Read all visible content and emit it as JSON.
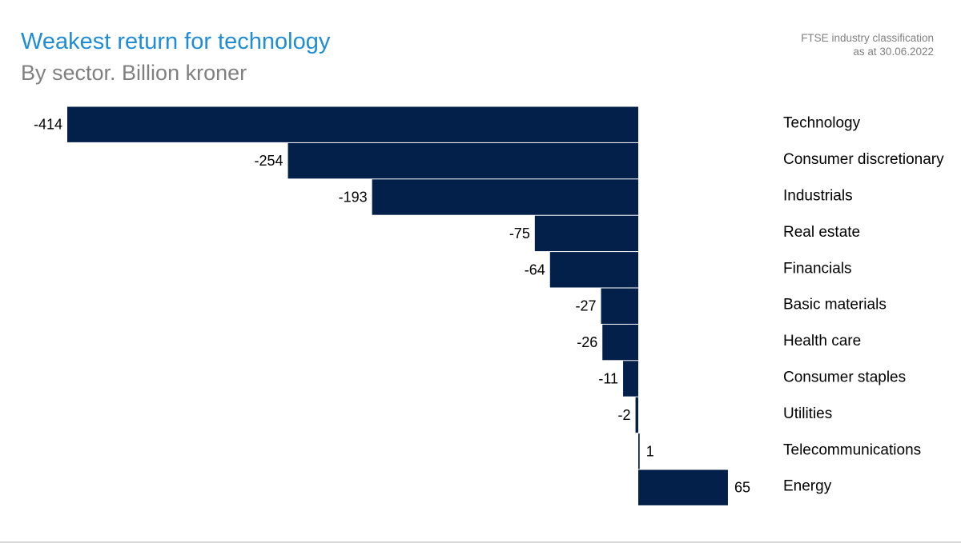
{
  "header": {
    "title": "Weakest return for technology",
    "subtitle": "By sector. Billion kroner",
    "note_line1": "FTSE industry classification",
    "note_line2": "as at 30.06.2022"
  },
  "colors": {
    "bar": "#03204a",
    "title": "#1f8dd6",
    "subtitle": "#808080"
  },
  "chart_data": {
    "type": "bar",
    "orientation": "horizontal",
    "title": "Weakest return for technology",
    "subtitle": "By sector. Billion kroner",
    "categories": [
      "Technology",
      "Consumer discretionary",
      "Industrials",
      "Real estate",
      "Financials",
      "Basic materials",
      "Health care",
      "Consumer staples",
      "Utilities",
      "Telecommunications",
      "Energy"
    ],
    "values": [
      -414,
      -254,
      -193,
      -75,
      -64,
      -27,
      -26,
      -11,
      -2,
      1,
      65
    ],
    "data_labels": [
      "-414",
      "-254",
      "-193",
      "-75",
      "-64",
      "-27",
      "-26",
      "-11",
      "-2",
      "1",
      "65"
    ],
    "xlim": [
      -414,
      65
    ],
    "grid": false,
    "legend": "none"
  }
}
